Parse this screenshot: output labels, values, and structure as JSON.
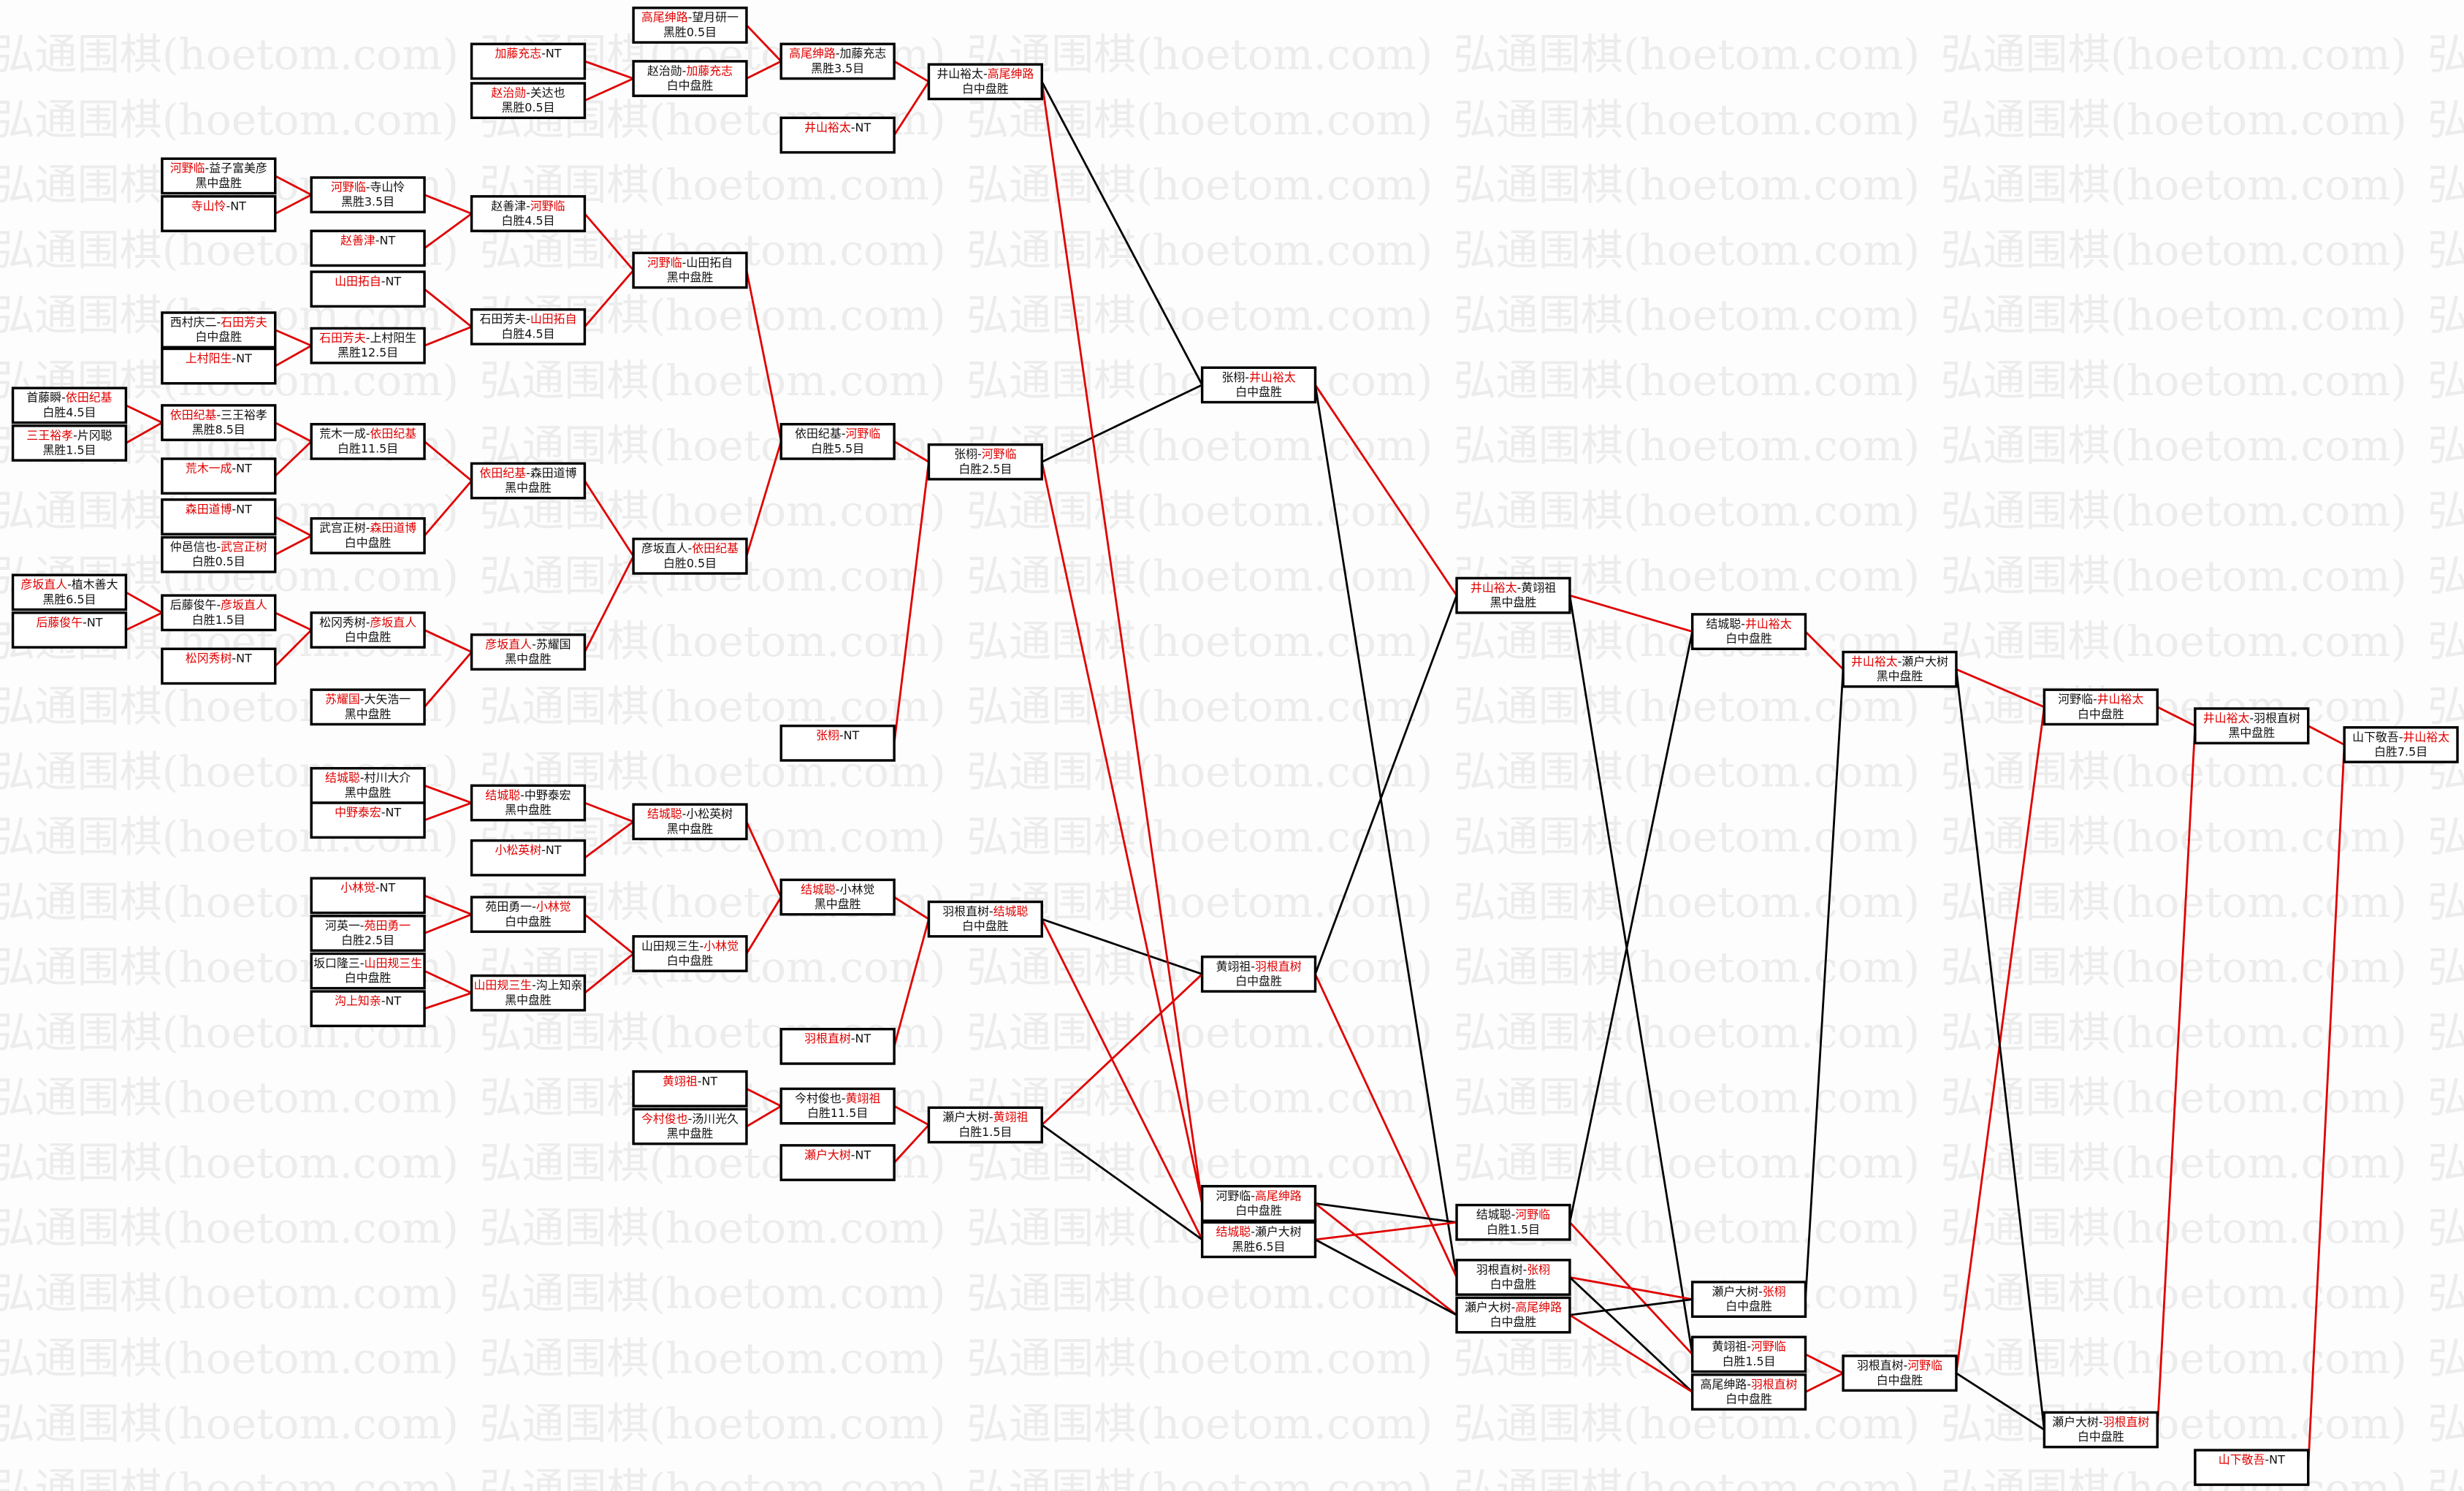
{
  "watermark": "弘通围棋(hoetom.com)",
  "colors": {
    "highlight": "#e00000",
    "normal": "#000000",
    "watermark": "#ececec"
  },
  "matches": [
    {
      "a": "高尾绅路",
      "b": "望月研一",
      "result": "黑胜0.5目",
      "red": "a"
    },
    {
      "a": "加藤充志",
      "b": "NT",
      "result": "",
      "red": "a"
    },
    {
      "a": "赵治勋",
      "b": "关达也",
      "result": "黑胜0.5目",
      "red": "a"
    },
    {
      "a": "赵治勋",
      "b": "加藤充志",
      "result": "白中盘胜",
      "red": "b"
    },
    {
      "a": "高尾绅路",
      "b": "加藤充志",
      "result": "黑胜3.5目",
      "red": "a"
    },
    {
      "a": "井山裕太",
      "b": "NT",
      "result": "",
      "red": "a"
    },
    {
      "a": "井山裕太",
      "b": "高尾绅路",
      "result": "白中盘胜",
      "red": "b"
    },
    {
      "a": "河野临",
      "b": "益子富美彦",
      "result": "黑中盘胜",
      "red": "a"
    },
    {
      "a": "寺山怜",
      "b": "NT",
      "result": "",
      "red": "a"
    },
    {
      "a": "河野临",
      "b": "寺山怜",
      "result": "黑胜3.5目",
      "red": "a"
    },
    {
      "a": "赵善津",
      "b": "NT",
      "result": "",
      "red": "a"
    },
    {
      "a": "赵善津",
      "b": "河野临",
      "result": "白胜4.5目",
      "red": "b"
    },
    {
      "a": "山田拓自",
      "b": "NT",
      "result": "",
      "red": "a"
    },
    {
      "a": "西村庆二",
      "b": "石田芳夫",
      "result": "白中盘胜",
      "red": "b"
    },
    {
      "a": "上村阳生",
      "b": "NT",
      "result": "",
      "red": "a"
    },
    {
      "a": "石田芳夫",
      "b": "上村阳生",
      "result": "黑胜12.5目",
      "red": "a"
    },
    {
      "a": "石田芳夫",
      "b": "山田拓自",
      "result": "白胜4.5目",
      "red": "b"
    },
    {
      "a": "河野临",
      "b": "山田拓自",
      "result": "黑中盘胜",
      "red": "a"
    },
    {
      "a": "首藤瞬",
      "b": "依田纪基",
      "result": "白胜4.5目",
      "red": "b"
    },
    {
      "a": "三王裕孝",
      "b": "片冈聪",
      "result": "黑胜1.5目",
      "red": "a"
    },
    {
      "a": "依田纪基",
      "b": "三王裕孝",
      "result": "黑胜8.5目",
      "red": "a"
    },
    {
      "a": "荒木一成",
      "b": "NT",
      "result": "",
      "red": "a"
    },
    {
      "a": "荒木一成",
      "b": "依田纪基",
      "result": "白胜11.5目",
      "red": "b"
    },
    {
      "a": "森田道博",
      "b": "NT",
      "result": "",
      "red": "a"
    },
    {
      "a": "仲邑信也",
      "b": "武宫正树",
      "result": "白胜0.5目",
      "red": "b"
    },
    {
      "a": "武宫正树",
      "b": "森田道博",
      "result": "白中盘胜",
      "red": "b"
    },
    {
      "a": "依田纪基",
      "b": "森田道博",
      "result": "黑中盘胜",
      "red": "a"
    },
    {
      "a": "彦坂直人",
      "b": "植木善大",
      "result": "黑胜6.5目",
      "red": "a"
    },
    {
      "a": "后藤俊午",
      "b": "NT",
      "result": "",
      "red": "a"
    },
    {
      "a": "后藤俊午",
      "b": "彦坂直人",
      "result": "白胜1.5目",
      "red": "b"
    },
    {
      "a": "松冈秀树",
      "b": "NT",
      "result": "",
      "red": "a"
    },
    {
      "a": "松冈秀树",
      "b": "彦坂直人",
      "result": "白中盘胜",
      "red": "b"
    },
    {
      "a": "苏耀国",
      "b": "大矢浩一",
      "result": "黑中盘胜",
      "red": "a"
    },
    {
      "a": "彦坂直人",
      "b": "苏耀国",
      "result": "黑中盘胜",
      "red": "a"
    },
    {
      "a": "彦坂直人",
      "b": "依田纪基",
      "result": "白胜0.5目",
      "red": "b"
    },
    {
      "a": "依田纪基",
      "b": "河野临",
      "result": "白胜5.5目",
      "red": "b"
    },
    {
      "a": "张栩",
      "b": "NT",
      "result": "",
      "red": "a"
    },
    {
      "a": "张栩",
      "b": "河野临",
      "result": "白胜2.5目",
      "red": "b"
    },
    {
      "a": "张栩",
      "b": "井山裕太",
      "result": "白中盘胜",
      "red": "b"
    },
    {
      "a": "结城聪",
      "b": "村川大介",
      "result": "黑中盘胜",
      "red": "a"
    },
    {
      "a": "中野泰宏",
      "b": "NT",
      "result": "",
      "red": "a"
    },
    {
      "a": "结城聪",
      "b": "中野泰宏",
      "result": "黑中盘胜",
      "red": "a"
    },
    {
      "a": "小松英树",
      "b": "NT",
      "result": "",
      "red": "a"
    },
    {
      "a": "结城聪",
      "b": "小松英树",
      "result": "黑中盘胜",
      "red": "a"
    },
    {
      "a": "小林觉",
      "b": "NT",
      "result": "",
      "red": "a"
    },
    {
      "a": "河英一",
      "b": "苑田勇一",
      "result": "白胜2.5目",
      "red": "b"
    },
    {
      "a": "苑田勇一",
      "b": "小林觉",
      "result": "白中盘胜",
      "red": "b"
    },
    {
      "a": "坂口隆三",
      "b": "山田规三生",
      "result": "白中盘胜",
      "red": "b"
    },
    {
      "a": "沟上知亲",
      "b": "NT",
      "result": "",
      "red": "a"
    },
    {
      "a": "山田规三生",
      "b": "沟上知亲",
      "result": "黑中盘胜",
      "red": "a"
    },
    {
      "a": "山田规三生",
      "b": "小林觉",
      "result": "白中盘胜",
      "red": "b"
    },
    {
      "a": "结城聪",
      "b": "小林觉",
      "result": "黑中盘胜",
      "red": "a"
    },
    {
      "a": "羽根直树",
      "b": "NT",
      "result": "",
      "red": "a"
    },
    {
      "a": "羽根直树",
      "b": "结城聪",
      "result": "白中盘胜",
      "red": "b"
    },
    {
      "a": "黄翊祖",
      "b": "NT",
      "result": "",
      "red": "a"
    },
    {
      "a": "今村俊也",
      "b": "汤川光久",
      "result": "黑中盘胜",
      "red": "a"
    },
    {
      "a": "今村俊也",
      "b": "黄翊祖",
      "result": "白胜11.5目",
      "red": "b"
    },
    {
      "a": "瀬户大树",
      "b": "NT",
      "result": "",
      "red": "a"
    },
    {
      "a": "瀬户大树",
      "b": "黄翊祖",
      "result": "白胜1.5目",
      "red": "b"
    },
    {
      "a": "黄翊祖",
      "b": "羽根直树",
      "result": "白中盘胜",
      "red": "b"
    },
    {
      "a": "河野临",
      "b": "高尾绅路",
      "result": "白中盘胜",
      "red": "b"
    },
    {
      "a": "结城聪",
      "b": "瀬户大树",
      "result": "黑胜6.5目",
      "red": "a"
    },
    {
      "a": "井山裕太",
      "b": "黄翊祖",
      "result": "黑中盘胜",
      "red": "a"
    },
    {
      "a": "结城聪",
      "b": "河野临",
      "result": "白胜1.5目",
      "red": "b"
    },
    {
      "a": "羽根直树",
      "b": "张栩",
      "result": "白中盘胜",
      "red": "b"
    },
    {
      "a": "瀬户大树",
      "b": "高尾绅路",
      "result": "白中盘胜",
      "red": "b"
    },
    {
      "a": "结城聪",
      "b": "井山裕太",
      "result": "白中盘胜",
      "red": "b"
    },
    {
      "a": "瀬户大树",
      "b": "张栩",
      "result": "白中盘胜",
      "red": "b"
    },
    {
      "a": "黄翊祖",
      "b": "河野临",
      "result": "白胜1.5目",
      "red": "b"
    },
    {
      "a": "高尾绅路",
      "b": "羽根直树",
      "result": "白中盘胜",
      "red": "b"
    },
    {
      "a": "井山裕太",
      "b": "瀬户大树",
      "result": "黑中盘胜",
      "red": "a"
    },
    {
      "a": "羽根直树",
      "b": "河野临",
      "result": "白中盘胜",
      "red": "b"
    },
    {
      "a": "河野临",
      "b": "井山裕太",
      "result": "白中盘胜",
      "red": "b"
    },
    {
      "a": "瀬户大树",
      "b": "羽根直树",
      "result": "白中盘胜",
      "red": "b"
    },
    {
      "a": "井山裕太",
      "b": "羽根直树",
      "result": "黑中盘胜",
      "red": "a"
    },
    {
      "a": "山下敬吾",
      "b": "NT",
      "result": "",
      "red": "a"
    },
    {
      "a": "山下敬吾",
      "b": "井山裕太",
      "result": "白胜7.5目",
      "red": "b"
    }
  ]
}
